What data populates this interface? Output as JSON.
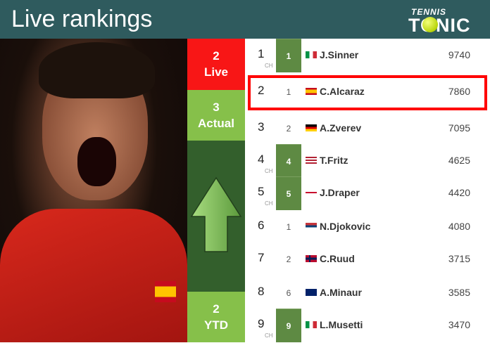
{
  "header": {
    "title": "Live rankings",
    "logo": {
      "line1": "TENNIS",
      "line2": "TONIC"
    }
  },
  "side": {
    "live": {
      "value": "2",
      "label": "Live"
    },
    "actual": {
      "value": "3",
      "label": "Actual"
    },
    "ytd": {
      "value": "2",
      "label": "YTD"
    },
    "trend": "up-arrow-icon"
  },
  "colors": {
    "live": "#f81616",
    "actual": "#86c04a",
    "arrow_bg": "#335f2c",
    "header": "#2f5b5e",
    "highlight": "#ff0000"
  },
  "rows": [
    {
      "rank": "1",
      "ch": "CH",
      "change": "1",
      "up": true,
      "flag": "italy",
      "name": "J.Sinner",
      "points": "9740"
    },
    {
      "rank": "2",
      "ch": "",
      "change": "1",
      "up": false,
      "flag": "spain",
      "name": "C.Alcaraz",
      "points": "7860",
      "highlight": true
    },
    {
      "rank": "3",
      "ch": "",
      "change": "2",
      "up": false,
      "flag": "germany",
      "name": "A.Zverev",
      "points": "7095"
    },
    {
      "rank": "4",
      "ch": "CH",
      "change": "4",
      "up": true,
      "flag": "usa",
      "name": "T.Fritz",
      "points": "4625"
    },
    {
      "rank": "5",
      "ch": "CH",
      "change": "5",
      "up": true,
      "flag": "uk",
      "name": "J.Draper",
      "points": "4420"
    },
    {
      "rank": "6",
      "ch": "",
      "change": "1",
      "up": false,
      "flag": "serbia",
      "name": "N.Djokovic",
      "points": "4080"
    },
    {
      "rank": "7",
      "ch": "",
      "change": "2",
      "up": false,
      "flag": "norway",
      "name": "C.Ruud",
      "points": "3715"
    },
    {
      "rank": "8",
      "ch": "",
      "change": "6",
      "up": false,
      "flag": "australia",
      "name": "A.Minaur",
      "points": "3585"
    },
    {
      "rank": "9",
      "ch": "CH",
      "change": "9",
      "up": true,
      "flag": "italy",
      "name": "L.Musetti",
      "points": "3470"
    }
  ]
}
